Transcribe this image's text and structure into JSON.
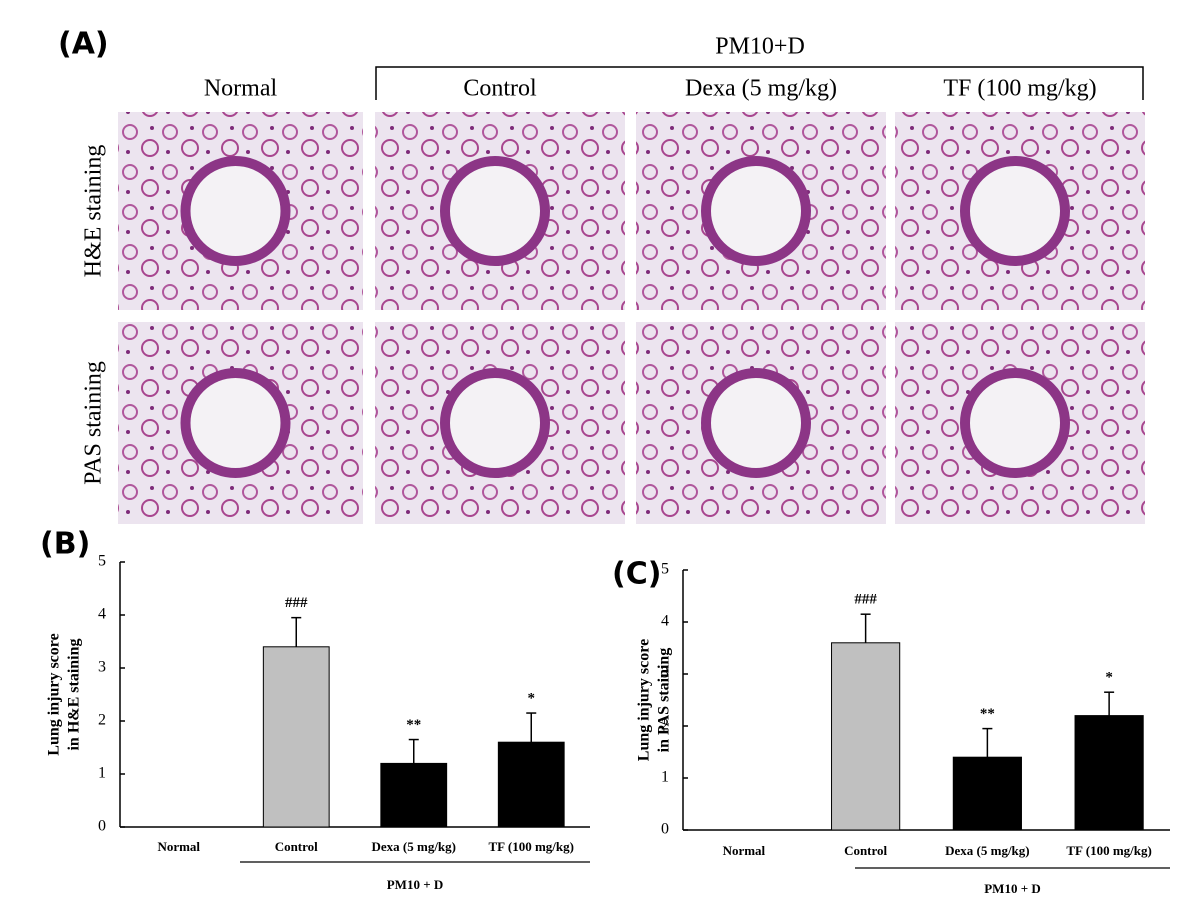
{
  "panel_a": {
    "label": "(A)",
    "group_label": "PM10+D",
    "columns": [
      "Normal",
      "Control",
      "Dexa (5 mg/kg)",
      "TF (100 mg/kg)"
    ],
    "rows": [
      "H&E staining",
      "PAS staining"
    ]
  },
  "chart_data": [
    {
      "type": "bar",
      "panel_label": "(B)",
      "y_label": [
        "Lung injury score",
        "in H&E staining"
      ],
      "categories": [
        "Normal",
        "Control",
        "Dexa (5 mg/kg)",
        "TF (100 mg/kg)"
      ],
      "values": [
        0,
        3.4,
        1.2,
        1.6
      ],
      "errors": [
        null,
        0.55,
        0.45,
        0.55
      ],
      "annotations": [
        null,
        "###",
        "**",
        "*"
      ],
      "colors": [
        "#000000",
        "#c0c0c0",
        "#000000",
        "#000000"
      ],
      "group_label": "PM10 + D",
      "ylim": [
        0,
        5
      ],
      "yticks": [
        0,
        1,
        2,
        3,
        4,
        5
      ]
    },
    {
      "type": "bar",
      "panel_label": "(C)",
      "y_label": [
        "Lung injury score",
        "in PAS staining"
      ],
      "categories": [
        "Normal",
        "Control",
        "Dexa (5 mg/kg)",
        "TF (100 mg/kg)"
      ],
      "values": [
        0,
        3.6,
        1.4,
        2.2
      ],
      "errors": [
        null,
        0.55,
        0.55,
        0.45
      ],
      "annotations": [
        null,
        "###",
        "**",
        "*"
      ],
      "colors": [
        "#000000",
        "#c0c0c0",
        "#000000",
        "#000000"
      ],
      "group_label": "PM10 + D",
      "ylim": [
        0,
        5
      ],
      "yticks": [
        0,
        1,
        2,
        3,
        4,
        5
      ]
    }
  ]
}
